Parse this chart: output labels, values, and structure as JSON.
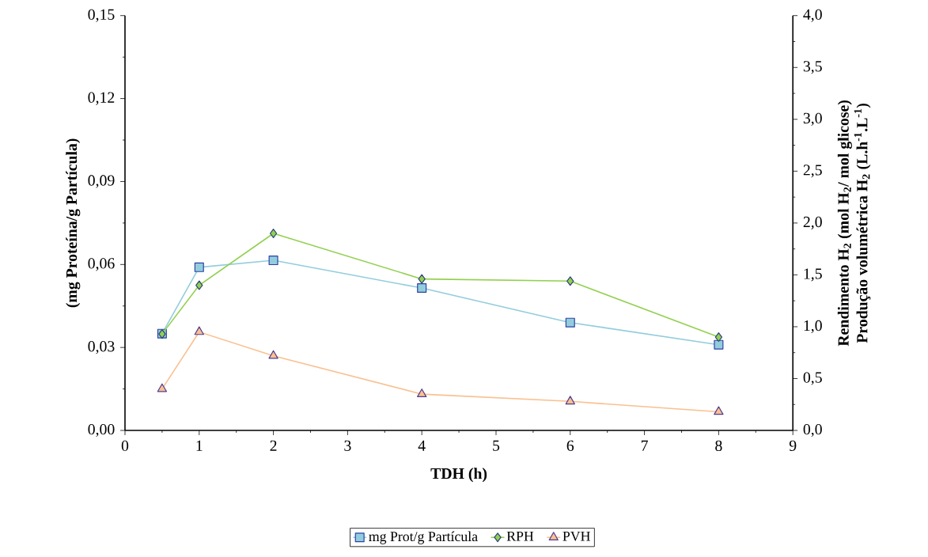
{
  "chart_data": {
    "type": "line",
    "xlabel": "TDH (h)",
    "ylabel": "(mg Proteína/g Partícula)",
    "y2label": [
      "Rendimento H$_{2}$ (mol H$_{2}$/ mol glicose)",
      "Produção volumétrica H$_{2}$ (L.h$^{-1}$.L$^{-1}$)"
    ],
    "x": [
      0.5,
      1,
      2,
      4,
      6,
      8
    ],
    "xlim": [
      0,
      9
    ],
    "xticks": [
      0,
      1,
      2,
      3,
      4,
      5,
      6,
      7,
      8,
      9
    ],
    "ylim": [
      0,
      0.15
    ],
    "yticks": [
      {
        "value": 0,
        "label": "0,00"
      },
      {
        "value": 0.03,
        "label": "0,03"
      },
      {
        "value": 0.06,
        "label": "0,06"
      },
      {
        "value": 0.09,
        "label": "0,09"
      },
      {
        "value": 0.12,
        "label": "0,12"
      },
      {
        "value": 0.15,
        "label": "0,15"
      }
    ],
    "y2lim": [
      0,
      4.0
    ],
    "y2ticks": [
      {
        "value": 0,
        "label": "0,0"
      },
      {
        "value": 0.5,
        "label": "0,5"
      },
      {
        "value": 1.0,
        "label": "1,0"
      },
      {
        "value": 1.5,
        "label": "1,5"
      },
      {
        "value": 2.0,
        "label": "2,0"
      },
      {
        "value": 2.5,
        "label": "2,5"
      },
      {
        "value": 3.0,
        "label": "3,0"
      },
      {
        "value": 3.5,
        "label": "3,5"
      },
      {
        "value": 4.0,
        "label": "4,0"
      }
    ],
    "legend": "bottom",
    "grid": false,
    "series": [
      {
        "name": "mg Prot/g Partícula",
        "color": "#92cddc",
        "marker": "square",
        "values": [
          0.035,
          0.059,
          0.0615,
          0.0515,
          0.039,
          0.031
        ]
      },
      {
        "name": "RPH",
        "color": "#92d050",
        "marker": "diamond",
        "axis": "y2",
        "values": [
          0.93,
          1.4,
          1.9,
          1.46,
          1.44,
          0.9
        ]
      },
      {
        "name": "PVH",
        "color": "#fac090",
        "marker": "triangle",
        "axis": "y2",
        "values": [
          0.4,
          0.95,
          0.72,
          0.35,
          0.28,
          0.18
        ]
      }
    ]
  }
}
